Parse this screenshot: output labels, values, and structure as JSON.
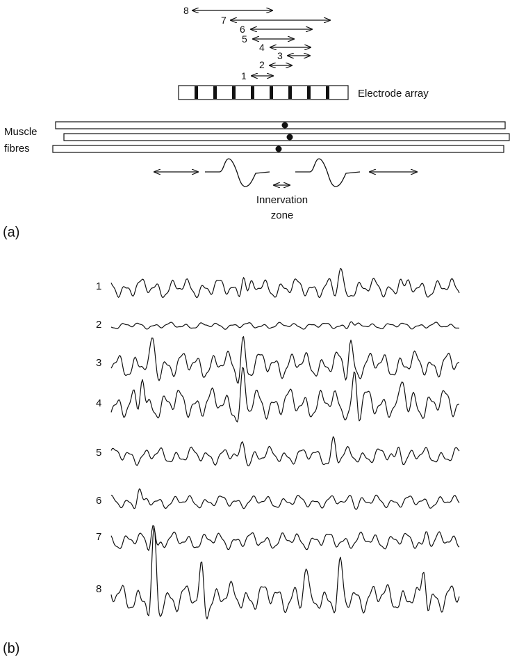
{
  "panel_a": {
    "label": "(a)",
    "pairs": [
      "1",
      "2",
      "3",
      "4",
      "5",
      "6",
      "7",
      "8"
    ],
    "electrode_label": "Electrode array",
    "muscle_label_line1": "Muscle",
    "muscle_label_line2": "fibres",
    "innervation_line1": "Innervation",
    "innervation_line2": "zone"
  },
  "panel_b": {
    "label": "(b)",
    "channels": [
      "1",
      "2",
      "3",
      "4",
      "5",
      "6",
      "7",
      "8"
    ]
  }
}
